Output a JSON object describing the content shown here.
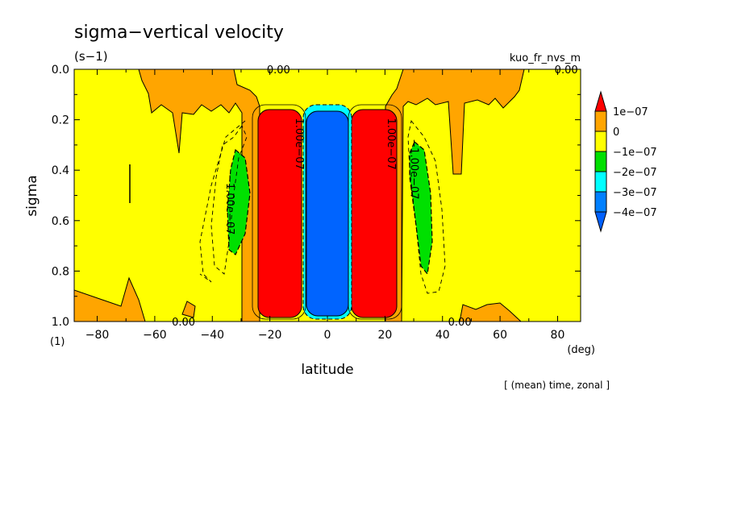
{
  "chart_data": {
    "type": "heatmap",
    "title": "sigma−vertical velocity",
    "units": "(s−1)",
    "experiment": "kuo_fr_nvs_m",
    "xlabel": "latitude",
    "ylabel": "sigma",
    "x_unit": "(deg)",
    "y_unit": "(1)",
    "footnote": "[ (mean) time, zonal ]",
    "xlim": [
      -88,
      88
    ],
    "ylim": [
      0,
      1
    ],
    "x_ticks": [
      "−80",
      "−60",
      "−40",
      "−20",
      "0",
      "20",
      "40",
      "60",
      "80"
    ],
    "x_tick_values": [
      -80,
      -60,
      -40,
      -20,
      0,
      20,
      40,
      60,
      80
    ],
    "y_ticks": [
      "0.0",
      "0.2",
      "0.4",
      "0.6",
      "0.8",
      "1.0"
    ],
    "y_tick_values": [
      0,
      0.2,
      0.4,
      0.6,
      0.8,
      1.0
    ],
    "colorbar": {
      "labels": [
        "1e−07",
        "0",
        "−1e−07",
        "−2e−07",
        "−3e−07",
        "−4e−07"
      ],
      "colors": [
        "#ff0000",
        "#ffa500",
        "#ffff00",
        "#00e000",
        "#00ffff",
        "#0080ff",
        "#0060ff"
      ]
    },
    "contour_labels": [
      {
        "text": "0.00",
        "lat": -17,
        "sigma": 0.0
      },
      {
        "text": "0.00",
        "lat": 83,
        "sigma": 0.0
      },
      {
        "text": "0.00",
        "lat": -50,
        "sigma": 1.0
      },
      {
        "text": "0.00",
        "lat": 46,
        "sigma": 1.0
      },
      {
        "text": "−1.00e−07",
        "lat": -35,
        "sigma": 0.52
      },
      {
        "text": "−1.00e−07",
        "lat": 29,
        "sigma": 0.38
      },
      {
        "text": "1.00e−07",
        "lat": -11,
        "sigma": 0.28
      },
      {
        "text": "1.00e−07",
        "lat": 21,
        "sigma": 0.28
      }
    ],
    "regions": [
      {
        "name": "ascent-region-south",
        "value": 1.2e-07,
        "lat_range": [
          -24,
          -8
        ],
        "sigma_range": [
          0.16,
          0.98
        ]
      },
      {
        "name": "descent-region-equator",
        "value": -4.5e-07,
        "lat_range": [
          -7,
          8
        ],
        "sigma_range": [
          0.15,
          0.97
        ]
      },
      {
        "name": "ascent-region-north",
        "value": 1.2e-07,
        "lat_range": [
          9,
          25
        ],
        "sigma_range": [
          0.16,
          0.98
        ]
      },
      {
        "name": "weak-descent-south",
        "value": -1.5e-07,
        "lat_range": [
          -35,
          -29
        ],
        "sigma_range": [
          0.32,
          0.74
        ]
      },
      {
        "name": "weak-descent-north",
        "value": -1.5e-07,
        "lat_range": [
          28,
          36
        ],
        "sigma_range": [
          0.28,
          0.8
        ]
      }
    ]
  }
}
